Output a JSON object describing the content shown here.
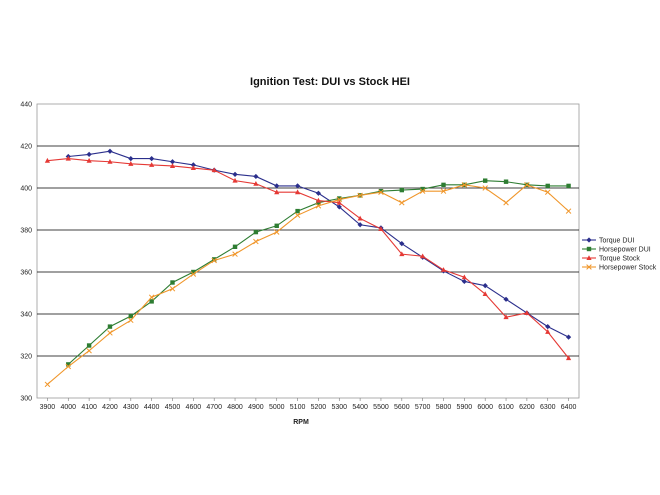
{
  "chart_data": {
    "type": "line",
    "title": "Ignition Test: DUI vs Stock HEI",
    "xlabel": "RPM",
    "ylabel": "",
    "ylim": [
      300,
      440
    ],
    "yticks": [
      300,
      320,
      340,
      360,
      380,
      400,
      420,
      440
    ],
    "grid": true,
    "legend_position": "right",
    "categories": [
      "3900",
      "4000",
      "4100",
      "4200",
      "4300",
      "4400",
      "4500",
      "4600",
      "4700",
      "4800",
      "4900",
      "5000",
      "5100",
      "5200",
      "5300",
      "5400",
      "5500",
      "5600",
      "5700",
      "5800",
      "5900",
      "6000",
      "6100",
      "6200",
      "6300",
      "6400"
    ],
    "series": [
      {
        "name": "Torque DUI",
        "color": "#2b2f8c",
        "marker": "diamond",
        "values": [
          null,
          415,
          416,
          417.5,
          414,
          414,
          412.5,
          411,
          408.5,
          406.5,
          405.5,
          401,
          401,
          397.5,
          391,
          382.5,
          381,
          373.5,
          367,
          360.5,
          355.5,
          353.5,
          347,
          340.5,
          334,
          329
        ]
      },
      {
        "name": "Horsepower DUI",
        "color": "#2e7d32",
        "marker": "square",
        "values": [
          null,
          316,
          325,
          334,
          339,
          346,
          355,
          360,
          366,
          372,
          379,
          382,
          389,
          393,
          395,
          396.5,
          398.5,
          399,
          399.5,
          401.5,
          401.5,
          403.5,
          403,
          401.5,
          401,
          401
        ]
      },
      {
        "name": "Torque Stock",
        "color": "#e53935",
        "marker": "triangle",
        "values": [
          413,
          414,
          413,
          412.5,
          411.5,
          411,
          410.5,
          409.5,
          408.5,
          403.5,
          402,
          398,
          398,
          394,
          393,
          385.5,
          380.5,
          368.5,
          367.5,
          361,
          357.5,
          349.5,
          338.5,
          340.5,
          331.5,
          319
        ]
      },
      {
        "name": "Horsepower Stock",
        "color": "#f0962a",
        "marker": "x",
        "values": [
          306.5,
          315,
          322.5,
          331,
          337,
          348,
          352,
          359,
          365.5,
          368.5,
          374.5,
          379,
          387,
          391.5,
          394.5,
          396.5,
          398,
          393,
          398.5,
          398.5,
          401.5,
          400,
          393,
          401.5,
          398,
          389
        ]
      }
    ]
  }
}
